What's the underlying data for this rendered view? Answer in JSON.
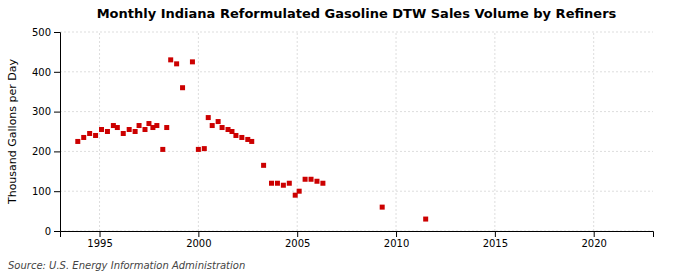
{
  "chart_data": {
    "type": "scatter",
    "title": "Monthly Indiana Reformulated Gasoline DTW Sales Volume by Refiners",
    "ylabel": "Thousand Gallons per Day",
    "source": "Source: U.S. Energy Information Administration",
    "x": [
      1993.9,
      1994.2,
      1994.5,
      1994.8,
      1995.1,
      1995.4,
      1995.7,
      1995.9,
      1996.2,
      1996.5,
      1996.8,
      1997.0,
      1997.3,
      1997.5,
      1997.7,
      1997.9,
      1998.2,
      1998.4,
      1998.6,
      1998.9,
      1999.2,
      1999.7,
      2000.0,
      2000.3,
      2000.5,
      2000.7,
      2001.0,
      2001.2,
      2001.5,
      2001.7,
      2001.9,
      2002.2,
      2002.5,
      2002.7,
      2003.3,
      2003.7,
      2004.0,
      2004.3,
      2004.6,
      2004.9,
      2005.1,
      2005.4,
      2005.7,
      2006.0,
      2006.3,
      2009.3,
      2011.5
    ],
    "values": [
      225,
      235,
      245,
      240,
      255,
      250,
      265,
      260,
      245,
      255,
      250,
      265,
      255,
      270,
      260,
      265,
      205,
      260,
      430,
      420,
      360,
      425,
      205,
      207,
      285,
      265,
      275,
      260,
      255,
      250,
      240,
      235,
      230,
      225,
      165,
      120,
      120,
      115,
      120,
      90,
      100,
      130,
      130,
      125,
      120,
      60,
      30
    ],
    "color": "#cc0000",
    "marker": "square",
    "xlim": [
      1993.0,
      2023.0
    ],
    "ylim": [
      0,
      500
    ],
    "xticks": [
      1995,
      2000,
      2005,
      2010,
      2015,
      2020
    ],
    "yticks": [
      0,
      100,
      200,
      300,
      400,
      500
    ],
    "grid": true
  }
}
